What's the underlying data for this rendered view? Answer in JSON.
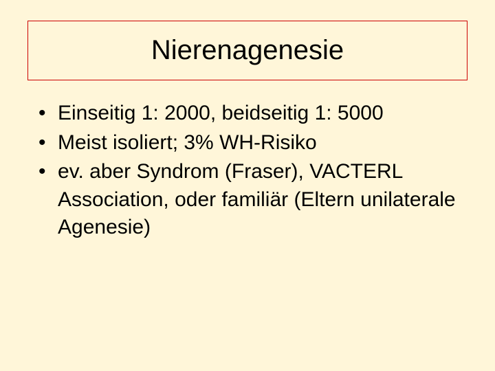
{
  "slide": {
    "title": "Nierenagenesie",
    "bullets": [
      "Einseitig 1: 2000, beidseitig 1: 5000",
      "Meist isoliert; 3% WH-Risiko",
      "ev. aber Syndrom (Fraser), VACTERL Association, oder familiär (Eltern unilaterale Agenesie)"
    ],
    "background_color": "#fff6d9",
    "title_border_color": "#cc0000",
    "text_color": "#000000",
    "title_fontsize": 40,
    "bullet_fontsize": 30
  }
}
